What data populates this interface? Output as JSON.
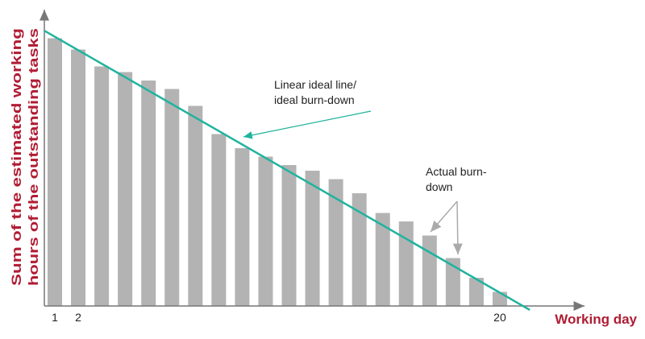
{
  "chart_data": {
    "type": "bar",
    "y_label": [
      "Sum of the estimated working",
      "hours of the outstanding tasks"
    ],
    "x_label": "Working day",
    "categories": [
      "1",
      "2",
      null,
      null,
      null,
      null,
      null,
      null,
      null,
      null,
      null,
      null,
      null,
      null,
      null,
      null,
      null,
      null,
      null,
      "20"
    ],
    "values": [
      95,
      91,
      85,
      83,
      80,
      77,
      71,
      61,
      56,
      53,
      50,
      48,
      45,
      40,
      33,
      30,
      25,
      17,
      10,
      5
    ],
    "color": "#b3b3b3",
    "ylim": [
      0,
      100
    ],
    "ideal_line": {
      "x": [
        0.55,
        21.28
      ],
      "values": [
        97.7,
        -1.4
      ],
      "color": "#20b39e"
    },
    "annotations": [
      {
        "lines": [
          "Linear ideal line/",
          "ideal burn-down"
        ]
      },
      {
        "lines": [
          "Actual burn-",
          "down"
        ]
      }
    ]
  }
}
